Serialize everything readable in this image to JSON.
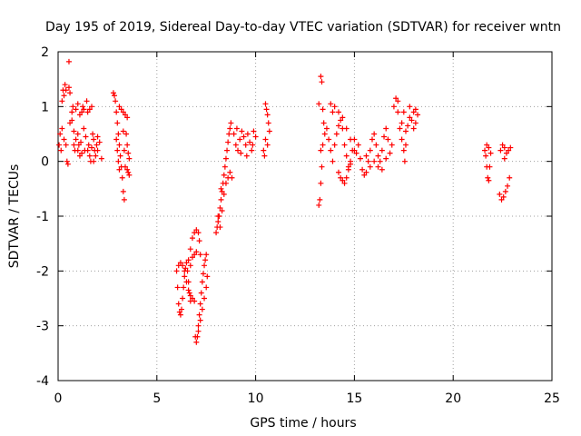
{
  "chart_data": {
    "type": "scatter",
    "title": "Day 195 of 2019, Sidereal Day-to-day VTEC variation (SDTVAR) for receiver wntn",
    "xlabel": "GPS time / hours",
    "ylabel": "SDTVAR / TECUs",
    "xlim": [
      0,
      25
    ],
    "ylim": [
      -4,
      2
    ],
    "xticks": [
      "0",
      "5",
      "10",
      "15",
      "20",
      "25"
    ],
    "yticks": [
      "-4",
      "-3",
      "-2",
      "-1",
      "0",
      "1",
      "2"
    ],
    "grid": true,
    "marker": "plus",
    "color": "#ff0000",
    "series": [
      {
        "points": [
          [
            0.05,
            0.3
          ],
          [
            0.1,
            0.5
          ],
          [
            0.15,
            0.2
          ],
          [
            0.2,
            1.1
          ],
          [
            0.25,
            1.3
          ],
          [
            0.3,
            1.2
          ],
          [
            0.35,
            1.4
          ],
          [
            0.4,
            1.3
          ],
          [
            0.45,
            0.0
          ],
          [
            0.5,
            -0.05
          ],
          [
            0.55,
            1.35
          ],
          [
            0.6,
            1.25
          ],
          [
            0.2,
            0.6
          ],
          [
            0.3,
            0.4
          ],
          [
            0.4,
            0.3
          ],
          [
            0.55,
            1.82
          ],
          [
            0.6,
            0.7
          ],
          [
            0.7,
            0.9
          ],
          [
            0.75,
            1.0
          ],
          [
            0.8,
            0.55
          ],
          [
            0.85,
            0.2
          ],
          [
            0.9,
            0.4
          ],
          [
            1.0,
            0.5
          ],
          [
            1.05,
            0.3
          ],
          [
            1.1,
            0.1
          ],
          [
            1.15,
            0.35
          ],
          [
            1.2,
            0.9
          ],
          [
            1.25,
            1.0
          ],
          [
            1.3,
            0.6
          ],
          [
            1.35,
            0.2
          ],
          [
            1.4,
            0.45
          ],
          [
            1.45,
            1.1
          ],
          [
            1.5,
            0.9
          ],
          [
            1.55,
            0.3
          ],
          [
            1.6,
            0.1
          ],
          [
            1.65,
            0.0
          ],
          [
            1.7,
            0.25
          ],
          [
            1.75,
            0.5
          ],
          [
            1.8,
            0.4
          ],
          [
            1.85,
            0.2
          ],
          [
            1.9,
            0.1
          ],
          [
            1.95,
            0.3
          ],
          [
            2.0,
            0.45
          ],
          [
            2.1,
            0.35
          ],
          [
            2.2,
            0.05
          ],
          [
            0.7,
            0.75
          ],
          [
            0.9,
            0.95
          ],
          [
            1.0,
            1.05
          ],
          [
            1.1,
            0.85
          ],
          [
            1.3,
            0.95
          ],
          [
            1.6,
            0.95
          ],
          [
            1.7,
            1.0
          ],
          [
            0.8,
            0.3
          ],
          [
            1.0,
            0.2
          ],
          [
            1.2,
            0.15
          ],
          [
            1.5,
            0.2
          ],
          [
            1.8,
            0.0
          ],
          [
            2.0,
            0.2
          ],
          [
            2.8,
            1.25
          ],
          [
            2.85,
            1.2
          ],
          [
            2.9,
            1.1
          ],
          [
            2.95,
            0.9
          ],
          [
            3.0,
            0.7
          ],
          [
            3.05,
            0.5
          ],
          [
            3.1,
            0.3
          ],
          [
            3.15,
            0.1
          ],
          [
            3.2,
            -0.1
          ],
          [
            3.25,
            -0.3
          ],
          [
            3.3,
            -0.55
          ],
          [
            3.35,
            -0.7
          ],
          [
            2.95,
            0.4
          ],
          [
            3.0,
            0.2
          ],
          [
            3.05,
            0.0
          ],
          [
            3.1,
            -0.15
          ],
          [
            3.1,
            1.0
          ],
          [
            3.2,
            0.95
          ],
          [
            3.3,
            0.9
          ],
          [
            3.4,
            0.85
          ],
          [
            3.5,
            0.8
          ],
          [
            3.45,
            0.5
          ],
          [
            3.5,
            0.3
          ],
          [
            3.55,
            0.15
          ],
          [
            3.6,
            0.05
          ],
          [
            3.5,
            -0.15
          ],
          [
            3.55,
            -0.2
          ],
          [
            3.6,
            -0.25
          ],
          [
            3.4,
            -0.1
          ],
          [
            3.3,
            0.55
          ],
          [
            3.35,
            0.2
          ],
          [
            6.0,
            -2.0
          ],
          [
            6.05,
            -2.3
          ],
          [
            6.1,
            -2.6
          ],
          [
            6.15,
            -2.75
          ],
          [
            6.2,
            -2.8
          ],
          [
            6.25,
            -2.7
          ],
          [
            6.3,
            -2.5
          ],
          [
            6.35,
            -2.3
          ],
          [
            6.4,
            -2.1
          ],
          [
            6.45,
            -1.95
          ],
          [
            6.5,
            -1.85
          ],
          [
            6.55,
            -2.0
          ],
          [
            6.6,
            -2.2
          ],
          [
            6.65,
            -2.4
          ],
          [
            6.7,
            -2.55
          ],
          [
            6.1,
            -1.9
          ],
          [
            6.2,
            -1.85
          ],
          [
            6.3,
            -1.9
          ],
          [
            6.4,
            -2.0
          ],
          [
            6.5,
            -2.2
          ],
          [
            6.6,
            -2.35
          ],
          [
            6.7,
            -2.45
          ],
          [
            6.8,
            -2.5
          ],
          [
            6.9,
            -2.55
          ],
          [
            6.6,
            -1.8
          ],
          [
            6.7,
            -1.6
          ],
          [
            6.8,
            -1.4
          ],
          [
            6.9,
            -1.3
          ],
          [
            7.0,
            -1.25
          ],
          [
            7.1,
            -1.3
          ],
          [
            7.15,
            -1.45
          ],
          [
            7.2,
            -1.7
          ],
          [
            6.7,
            -1.9
          ],
          [
            6.8,
            -1.75
          ],
          [
            6.9,
            -1.7
          ],
          [
            7.0,
            -1.65
          ],
          [
            6.95,
            -3.2
          ],
          [
            7.0,
            -3.3
          ],
          [
            7.05,
            -3.2
          ],
          [
            7.1,
            -3.0
          ],
          [
            7.15,
            -2.8
          ],
          [
            7.2,
            -2.6
          ],
          [
            7.25,
            -2.4
          ],
          [
            7.3,
            -2.2
          ],
          [
            7.35,
            -2.05
          ],
          [
            7.4,
            -1.9
          ],
          [
            7.45,
            -1.8
          ],
          [
            7.5,
            -1.7
          ],
          [
            7.1,
            -3.1
          ],
          [
            7.2,
            -2.9
          ],
          [
            7.3,
            -2.7
          ],
          [
            7.4,
            -2.5
          ],
          [
            7.5,
            -2.3
          ],
          [
            7.55,
            -2.1
          ],
          [
            8.0,
            -1.3
          ],
          [
            8.05,
            -1.2
          ],
          [
            8.1,
            -1.1
          ],
          [
            8.15,
            -1.0
          ],
          [
            8.2,
            -0.85
          ],
          [
            8.25,
            -0.7
          ],
          [
            8.3,
            -0.55
          ],
          [
            8.35,
            -0.4
          ],
          [
            8.4,
            -0.25
          ],
          [
            8.45,
            -0.1
          ],
          [
            8.5,
            0.05
          ],
          [
            8.55,
            0.2
          ],
          [
            8.6,
            0.35
          ],
          [
            8.65,
            0.5
          ],
          [
            8.7,
            0.6
          ],
          [
            8.75,
            0.7
          ],
          [
            8.2,
            -1.2
          ],
          [
            8.3,
            -0.9
          ],
          [
            8.4,
            -0.6
          ],
          [
            8.5,
            -0.4
          ],
          [
            8.6,
            -0.3
          ],
          [
            8.7,
            -0.2
          ],
          [
            8.8,
            -0.3
          ],
          [
            8.1,
            -1.0
          ],
          [
            8.25,
            -0.5
          ],
          [
            8.9,
            0.5
          ],
          [
            9.0,
            0.3
          ],
          [
            9.1,
            0.2
          ],
          [
            9.2,
            0.4
          ],
          [
            9.3,
            0.55
          ],
          [
            9.4,
            0.45
          ],
          [
            9.5,
            0.3
          ],
          [
            9.6,
            0.5
          ],
          [
            9.7,
            0.35
          ],
          [
            9.8,
            0.2
          ],
          [
            9.9,
            0.55
          ],
          [
            10.0,
            0.45
          ],
          [
            9.05,
            0.6
          ],
          [
            9.25,
            0.15
          ],
          [
            9.55,
            0.1
          ],
          [
            9.85,
            0.3
          ],
          [
            10.4,
            0.2
          ],
          [
            10.45,
            0.1
          ],
          [
            10.5,
            1.05
          ],
          [
            10.55,
            0.95
          ],
          [
            10.6,
            0.85
          ],
          [
            10.65,
            0.7
          ],
          [
            10.7,
            0.55
          ],
          [
            10.5,
            0.4
          ],
          [
            10.6,
            0.3
          ],
          [
            13.2,
            -0.8
          ],
          [
            13.25,
            -0.7
          ],
          [
            13.3,
            -0.4
          ],
          [
            13.35,
            -0.1
          ],
          [
            13.4,
            0.3
          ],
          [
            13.3,
            1.55
          ],
          [
            13.35,
            1.45
          ],
          [
            13.2,
            1.05
          ],
          [
            13.4,
            0.95
          ],
          [
            13.45,
            0.7
          ],
          [
            13.5,
            0.5
          ],
          [
            13.3,
            0.2
          ],
          [
            13.6,
            0.6
          ],
          [
            13.7,
            0.4
          ],
          [
            13.8,
            0.2
          ],
          [
            13.9,
            0.0
          ],
          [
            14.0,
            0.3
          ],
          [
            14.1,
            0.5
          ],
          [
            14.2,
            0.65
          ],
          [
            14.3,
            0.75
          ],
          [
            14.4,
            0.6
          ],
          [
            14.5,
            0.3
          ],
          [
            14.6,
            0.1
          ],
          [
            14.7,
            -0.1
          ],
          [
            14.8,
            0.0
          ],
          [
            14.9,
            0.2
          ],
          [
            15.0,
            0.4
          ],
          [
            13.8,
            1.05
          ],
          [
            13.9,
            0.9
          ],
          [
            14.0,
            1.0
          ],
          [
            14.2,
            0.9
          ],
          [
            14.4,
            0.8
          ],
          [
            14.6,
            0.6
          ],
          [
            14.8,
            0.4
          ],
          [
            15.0,
            0.2
          ],
          [
            14.2,
            -0.2
          ],
          [
            14.3,
            -0.3
          ],
          [
            14.4,
            -0.35
          ],
          [
            14.5,
            -0.4
          ],
          [
            14.6,
            -0.3
          ],
          [
            14.7,
            -0.15
          ],
          [
            14.8,
            -0.05
          ],
          [
            15.1,
            0.15
          ],
          [
            15.2,
            0.3
          ],
          [
            15.3,
            0.05
          ],
          [
            15.4,
            -0.15
          ],
          [
            15.5,
            -0.25
          ],
          [
            15.6,
            -0.2
          ],
          [
            15.7,
            0.0
          ],
          [
            15.8,
            0.2
          ],
          [
            15.9,
            0.4
          ],
          [
            16.0,
            0.5
          ],
          [
            16.1,
            0.3
          ],
          [
            16.2,
            0.1
          ],
          [
            16.3,
            0.0
          ],
          [
            16.4,
            0.2
          ],
          [
            16.5,
            0.45
          ],
          [
            16.6,
            0.6
          ],
          [
            16.7,
            0.4
          ],
          [
            16.8,
            0.15
          ],
          [
            16.9,
            0.3
          ],
          [
            15.6,
            0.1
          ],
          [
            15.8,
            -0.1
          ],
          [
            16.0,
            0.0
          ],
          [
            16.2,
            -0.1
          ],
          [
            16.4,
            -0.15
          ],
          [
            16.6,
            0.05
          ],
          [
            17.0,
            1.0
          ],
          [
            17.1,
            1.15
          ],
          [
            17.2,
            0.9
          ],
          [
            17.3,
            0.6
          ],
          [
            17.4,
            0.4
          ],
          [
            17.5,
            0.2
          ],
          [
            17.55,
            0.0
          ],
          [
            17.6,
            0.3
          ],
          [
            17.7,
            0.65
          ],
          [
            17.8,
            0.8
          ],
          [
            17.9,
            0.75
          ],
          [
            18.0,
            0.9
          ],
          [
            18.1,
            0.7
          ],
          [
            18.2,
            0.85
          ],
          [
            17.2,
            1.1
          ],
          [
            17.5,
            0.9
          ],
          [
            17.8,
            1.0
          ],
          [
            18.0,
            0.6
          ],
          [
            18.1,
            0.95
          ],
          [
            17.4,
            0.7
          ],
          [
            17.6,
            0.55
          ],
          [
            21.6,
            0.2
          ],
          [
            21.65,
            0.1
          ],
          [
            21.7,
            -0.1
          ],
          [
            21.75,
            -0.3
          ],
          [
            21.8,
            -0.35
          ],
          [
            21.85,
            -0.1
          ],
          [
            21.9,
            0.15
          ],
          [
            21.7,
            0.3
          ],
          [
            21.8,
            0.25
          ],
          [
            22.4,
            0.2
          ],
          [
            22.5,
            0.3
          ],
          [
            22.6,
            0.25
          ],
          [
            22.7,
            0.15
          ],
          [
            22.8,
            0.2
          ],
          [
            22.9,
            0.25
          ],
          [
            22.6,
            0.05
          ],
          [
            22.35,
            -0.6
          ],
          [
            22.45,
            -0.7
          ],
          [
            22.55,
            -0.65
          ],
          [
            22.65,
            -0.55
          ],
          [
            22.75,
            -0.45
          ],
          [
            22.85,
            -0.3
          ]
        ]
      }
    ]
  }
}
